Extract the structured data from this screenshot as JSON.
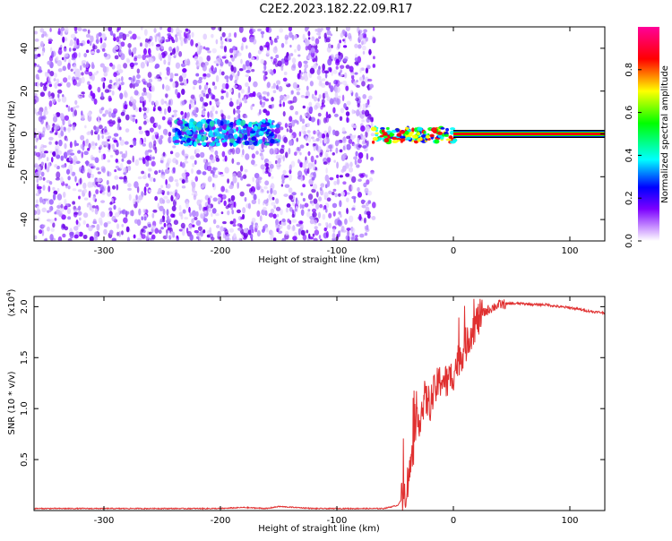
{
  "title": "C2E2.2023.182.22.09.R17",
  "chart_data": [
    {
      "type": "heatmap",
      "title": "C2E2.2023.182.22.09.R17",
      "xlabel": "Height of straight line (km)",
      "ylabel": "Frequency (Hz)",
      "xlim": [
        -360,
        130
      ],
      "ylim": [
        -50,
        50
      ],
      "xticks": [
        -300,
        -200,
        -100,
        0,
        100
      ],
      "yticks": [
        -40,
        -20,
        0,
        20,
        40
      ],
      "colorbar": {
        "label": "Normalized spectral amplitude",
        "range": [
          0.0,
          1.0
        ],
        "ticks": [
          "0.0",
          "0.2",
          "0.4",
          "0.6",
          "0.8"
        ],
        "colormap": [
          "#ffffff",
          "#7b00ff",
          "#0000ff",
          "#00ffff",
          "#00ff00",
          "#ffff00",
          "#ff0000",
          "#ff0099"
        ]
      },
      "features": {
        "noise_regions": [
          [
            -360,
            -68
          ]
        ],
        "low_freq_cluster": {
          "x_range": [
            -240,
            -150
          ],
          "freq_range": [
            -5,
            6
          ]
        },
        "carrier_line": {
          "x_range": [
            0,
            130
          ],
          "frequency": 0,
          "amplitude": 0.9
        }
      }
    },
    {
      "type": "line",
      "xlabel": "Height of straight line (km)",
      "ylabel": "SNR (10 * v/v)",
      "y_multiplier_label": "(x10",
      "y_multiplier_exp": "4",
      "y_multiplier_close": ")",
      "xlim": [
        -360,
        130
      ],
      "ylim": [
        0,
        2.1
      ],
      "xticks": [
        -300,
        -200,
        -100,
        0,
        100
      ],
      "yticks": [
        "0.5",
        "1.0",
        "1.5",
        "2.0"
      ],
      "line_color": "#e03030",
      "series": [
        {
          "x": [
            -360,
            -300,
            -250,
            -200,
            -180,
            -160,
            -150,
            -120,
            -100,
            -60,
            -48,
            -42,
            -38,
            -35,
            -32,
            -28,
            -25,
            -20,
            -15,
            -10,
            -5,
            0,
            5,
            10,
            15,
            20,
            25,
            30,
            35,
            40,
            50,
            60,
            70,
            80,
            90,
            100,
            110,
            120,
            130
          ],
          "y": [
            0.02,
            0.02,
            0.02,
            0.02,
            0.03,
            0.02,
            0.04,
            0.02,
            0.02,
            0.02,
            0.05,
            0.15,
            0.35,
            0.55,
            0.8,
            0.95,
            1.1,
            1.05,
            1.2,
            1.3,
            1.25,
            1.35,
            1.5,
            1.6,
            1.75,
            1.85,
            1.93,
            1.97,
            2.0,
            2.02,
            2.03,
            2.03,
            2.02,
            2.02,
            2.0,
            1.99,
            1.97,
            1.95,
            1.94
          ]
        }
      ]
    }
  ]
}
